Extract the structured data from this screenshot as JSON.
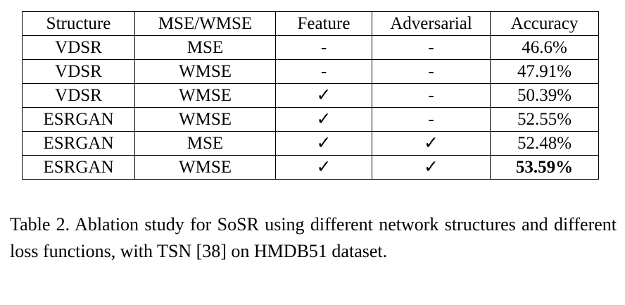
{
  "table": {
    "headers": [
      "Structure",
      "MSE/WMSE",
      "Feature",
      "Adversarial",
      "Accuracy"
    ],
    "rows": [
      {
        "structure": "VDSR",
        "loss": "MSE",
        "feature": "-",
        "adversarial": "-",
        "accuracy": "46.6%",
        "bold": false
      },
      {
        "structure": "VDSR",
        "loss": "WMSE",
        "feature": "-",
        "adversarial": "-",
        "accuracy": "47.91%",
        "bold": false
      },
      {
        "structure": "VDSR",
        "loss": "WMSE",
        "feature": "✓",
        "adversarial": "-",
        "accuracy": "50.39%",
        "bold": false
      },
      {
        "structure": "ESRGAN",
        "loss": "WMSE",
        "feature": "✓",
        "adversarial": "-",
        "accuracy": "52.55%",
        "bold": false
      },
      {
        "structure": "ESRGAN",
        "loss": "MSE",
        "feature": "✓",
        "adversarial": "✓",
        "accuracy": "52.48%",
        "bold": false
      },
      {
        "structure": "ESRGAN",
        "loss": "WMSE",
        "feature": "✓",
        "adversarial": "✓",
        "accuracy": "53.59%",
        "bold": true
      }
    ]
  },
  "caption": "Table 2. Ablation study for SoSR using different network structures and different loss functions, with TSN [38] on HMDB51 dataset."
}
